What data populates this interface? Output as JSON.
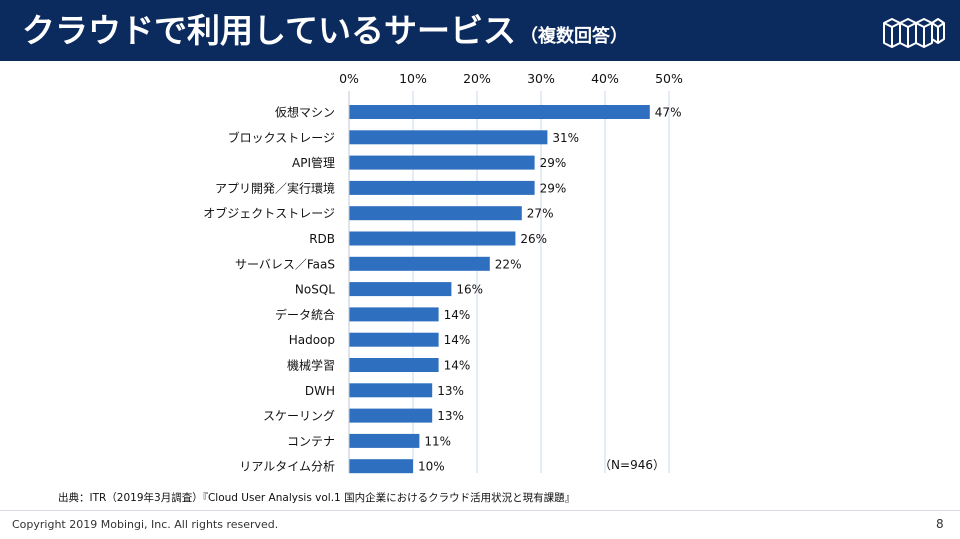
{
  "header": {
    "title": "クラウドで利用しているサービス",
    "subtitle": "（複数回答）",
    "logo_icon": "mobingi-cube-logo-icon"
  },
  "chart_data": {
    "type": "bar",
    "orientation": "horizontal",
    "categories": [
      "仮想マシン",
      "ブロックストレージ",
      "API管理",
      "アプリ開発／実行環境",
      "オブジェクトストレージ",
      "RDB",
      "サーバレス／FaaS",
      "NoSQL",
      "データ統合",
      "Hadoop",
      "機械学習",
      "DWH",
      "スケーリング",
      "コンテナ",
      "リアルタイム分析"
    ],
    "values": [
      47,
      31,
      29,
      29,
      27,
      26,
      22,
      16,
      14,
      14,
      14,
      13,
      13,
      11,
      10
    ],
    "value_labels": [
      "47%",
      "31%",
      "29%",
      "29%",
      "27%",
      "26%",
      "22%",
      "16%",
      "14%",
      "14%",
      "14%",
      "13%",
      "13%",
      "11%",
      "10%"
    ],
    "x_ticks": [
      "0%",
      "10%",
      "20%",
      "30%",
      "40%",
      "50%"
    ],
    "xlim": [
      0,
      50
    ],
    "axis_position": "top",
    "grid": true,
    "annotation": "（N=946）",
    "bar_color": "#2e6fbf",
    "grid_color": "#d6e0ee"
  },
  "source": "出典：ITR（2019年3月調査）『Cloud User Analysis vol.1 国内企業におけるクラウド活用状況と現有課題』",
  "footer": {
    "copyright": "Copyright 2019 Mobingi, Inc. All rights reserved.",
    "page": "8"
  }
}
